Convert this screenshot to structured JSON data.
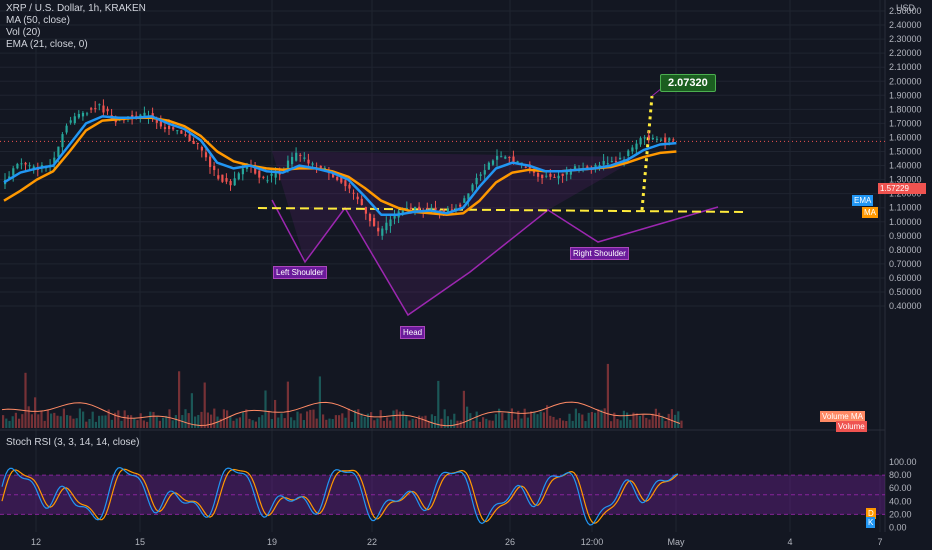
{
  "header": {
    "symbol": "XRP / U.S. Dollar, 1h, KRAKEN",
    "ma": "MA (50, close)",
    "vol": "Vol (20)",
    "ema": "EMA (21, close, 0)",
    "stoch": "Stoch RSI (3, 3, 14, 14, close)"
  },
  "badges": {
    "ema": "EMA",
    "ma": "MA",
    "last_price": "1.57229",
    "volume_ma": "Volume MA",
    "volume": "Volume",
    "d": "D",
    "k": "K"
  },
  "colors": {
    "background": "#131722",
    "ema": "#2196f3",
    "ma": "#ff9800",
    "neckline": "#ffeb3b",
    "pattern": "#9c27b0",
    "stoch_k": "#2196f3",
    "stoch_d": "#ff9800",
    "up": "#26a69a",
    "down": "#ef5350"
  },
  "chart_data": {
    "type": "line",
    "currency": "USD",
    "y_ticks": [
      "2.50000",
      "2.40000",
      "2.30000",
      "2.20000",
      "2.10000",
      "2.00000",
      "1.90000",
      "1.80000",
      "1.70000",
      "1.60000",
      "1.50000",
      "1.40000",
      "1.30000",
      "1.20000",
      "1.10000",
      "1.00000",
      "0.90000",
      "0.80000",
      "0.70000",
      "0.60000",
      "0.50000",
      "0.40000"
    ],
    "x_ticks": [
      "12",
      "15",
      "19",
      "22",
      "26",
      "12:00",
      "May",
      "4",
      "7"
    ],
    "target_label": "2.07320",
    "neckline_level": 1.46,
    "annotations": [
      "Left Shoulder",
      "Head",
      "Right Shoulder"
    ],
    "price": {
      "x": [
        0,
        4,
        8,
        12,
        16,
        20,
        24,
        28,
        32,
        36,
        40,
        44,
        48,
        52,
        56,
        60,
        64,
        68,
        72,
        76,
        80,
        84,
        88,
        92,
        96,
        100,
        104,
        108,
        112,
        116,
        120,
        124,
        128,
        132,
        136,
        140,
        144,
        148,
        152,
        156,
        160,
        164
      ],
      "close": [
        1.25,
        1.42,
        1.38,
        1.4,
        1.7,
        1.78,
        1.82,
        1.72,
        1.75,
        1.76,
        1.67,
        1.62,
        1.55,
        1.35,
        1.25,
        1.42,
        1.3,
        1.36,
        1.48,
        1.4,
        1.36,
        1.25,
        1.12,
        0.92,
        1.05,
        1.1,
        1.09,
        1.06,
        1.12,
        1.32,
        1.45,
        1.45,
        1.39,
        1.32,
        1.33,
        1.38,
        1.39,
        1.43,
        1.46,
        1.6,
        1.59,
        1.57
      ]
    },
    "ema": [
      1.28,
      1.35,
      1.38,
      1.4,
      1.55,
      1.7,
      1.75,
      1.74,
      1.74,
      1.75,
      1.7,
      1.66,
      1.58,
      1.42,
      1.38,
      1.4,
      1.36,
      1.35,
      1.4,
      1.38,
      1.35,
      1.3,
      1.18,
      1.05,
      1.05,
      1.07,
      1.08,
      1.06,
      1.1,
      1.25,
      1.38,
      1.42,
      1.4,
      1.36,
      1.36,
      1.37,
      1.38,
      1.4,
      1.44,
      1.51,
      1.55,
      1.56
    ],
    "ma": [
      1.15,
      1.22,
      1.3,
      1.36,
      1.5,
      1.65,
      1.72,
      1.73,
      1.74,
      1.74,
      1.72,
      1.68,
      1.61,
      1.5,
      1.43,
      1.4,
      1.38,
      1.37,
      1.38,
      1.38,
      1.36,
      1.32,
      1.24,
      1.15,
      1.1,
      1.07,
      1.06,
      1.05,
      1.06,
      1.15,
      1.28,
      1.35,
      1.37,
      1.36,
      1.36,
      1.37,
      1.38,
      1.39,
      1.42,
      1.46,
      1.49,
      1.5
    ],
    "stoch_ticks": [
      "100.00",
      "80.00",
      "60.00",
      "40.00",
      "20.00",
      "0.00"
    ],
    "stoch_bands": [
      20,
      80
    ]
  }
}
